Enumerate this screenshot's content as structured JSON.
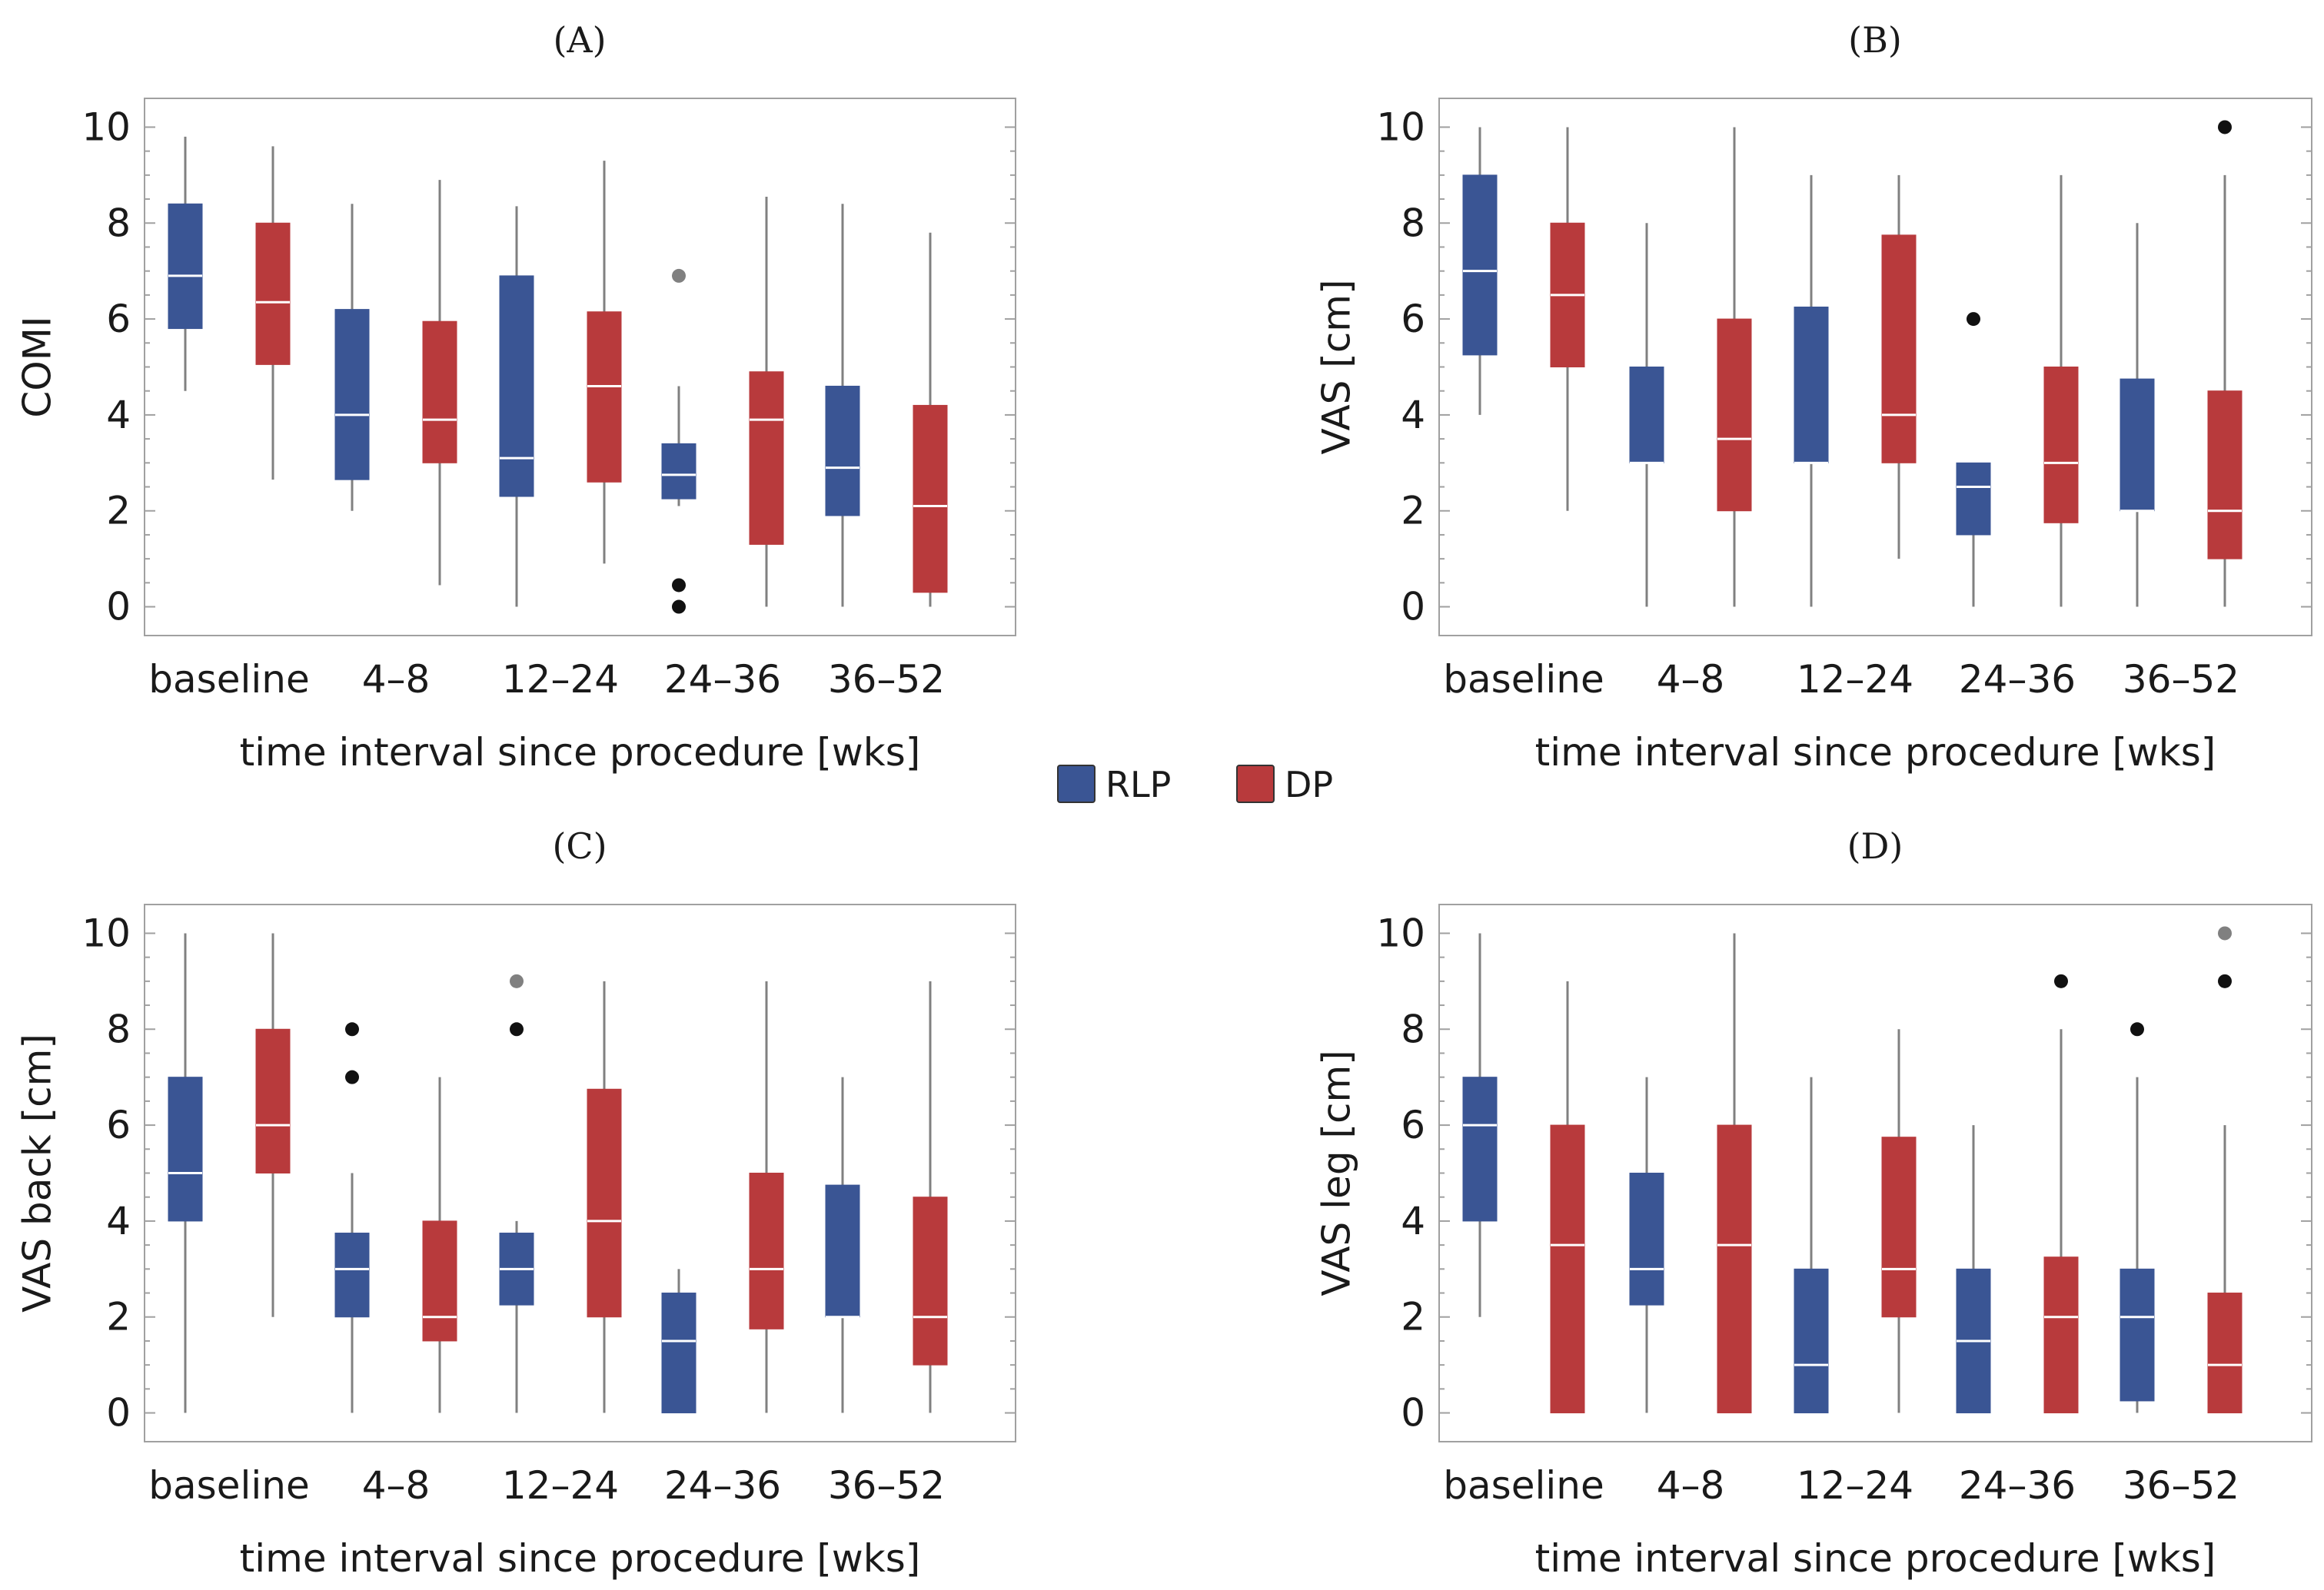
{
  "colors": {
    "RLP": "#3a5594",
    "DP": "#b83a3c",
    "whisker": "#808080",
    "median": "#ffffff",
    "frame": "#a0a0a0",
    "outlier_dark": "#111111",
    "outlier_gray": "#808080"
  },
  "legend": [
    {
      "key": "RLP",
      "label": "RLP"
    },
    {
      "key": "DP",
      "label": "DP"
    }
  ],
  "chart_data": [
    {
      "type": "box",
      "title": "(A)",
      "xlabel": "time interval since procedure [wks]",
      "ylabel": "COMI",
      "ylim": [
        -0.6,
        10.6
      ],
      "yticks": [
        0,
        2,
        4,
        6,
        8,
        10
      ],
      "categories": [
        "baseline",
        "4–8",
        "12–24",
        "24–36",
        "36–52"
      ],
      "series": [
        {
          "name": "RLP",
          "boxes": [
            {
              "min": 4.5,
              "q1": 5.8,
              "median": 6.9,
              "q3": 8.4,
              "max": 9.8,
              "outliers": []
            },
            {
              "min": 2.0,
              "q1": 2.65,
              "median": 4.0,
              "q3": 6.2,
              "max": 8.4,
              "outliers": []
            },
            {
              "min": 0.0,
              "q1": 2.3,
              "median": 3.1,
              "q3": 6.9,
              "max": 8.35,
              "outliers": []
            },
            {
              "min": 2.1,
              "q1": 2.25,
              "median": 2.75,
              "q3": 3.4,
              "max": 4.6,
              "outliers": [
                {
                  "y": 6.9,
                  "style": "gray"
                },
                {
                  "y": 0.45,
                  "style": "dark"
                },
                {
                  "y": 0.0,
                  "style": "dark"
                }
              ]
            },
            {
              "min": 0.0,
              "q1": 1.9,
              "median": 2.9,
              "q3": 4.6,
              "max": 8.4,
              "outliers": []
            }
          ]
        },
        {
          "name": "DP",
          "boxes": [
            {
              "min": 2.65,
              "q1": 5.05,
              "median": 6.35,
              "q3": 8.0,
              "max": 9.6,
              "outliers": []
            },
            {
              "min": 0.45,
              "q1": 3.0,
              "median": 3.9,
              "q3": 5.95,
              "max": 8.9,
              "outliers": []
            },
            {
              "min": 0.9,
              "q1": 2.6,
              "median": 4.6,
              "q3": 6.15,
              "max": 9.3,
              "outliers": []
            },
            {
              "min": 0.0,
              "q1": 1.3,
              "median": 3.9,
              "q3": 4.9,
              "max": 8.55,
              "outliers": []
            },
            {
              "min": 0.0,
              "q1": 0.3,
              "median": 2.1,
              "q3": 4.2,
              "max": 7.8,
              "outliers": []
            }
          ]
        }
      ]
    },
    {
      "type": "box",
      "title": "(B)",
      "xlabel": "time interval since procedure [wks]",
      "ylabel": "VAS [cm]",
      "ylim": [
        -0.6,
        10.6
      ],
      "yticks": [
        0,
        2,
        4,
        6,
        8,
        10
      ],
      "categories": [
        "baseline",
        "4–8",
        "12–24",
        "24–36",
        "36–52"
      ],
      "series": [
        {
          "name": "RLP",
          "boxes": [
            {
              "min": 4.0,
              "q1": 5.25,
              "median": 7.0,
              "q3": 9.0,
              "max": 10.0,
              "outliers": []
            },
            {
              "min": 0.0,
              "q1": 3.0,
              "median": 3.0,
              "q3": 5.0,
              "max": 8.0,
              "outliers": []
            },
            {
              "min": 0.0,
              "q1": 3.0,
              "median": 3.0,
              "q3": 6.25,
              "max": 9.0,
              "outliers": []
            },
            {
              "min": 0.0,
              "q1": 1.5,
              "median": 2.5,
              "q3": 3.0,
              "max": 3.0,
              "outliers": [
                {
                  "y": 6.0,
                  "style": "dark"
                }
              ]
            },
            {
              "min": 0.0,
              "q1": 2.0,
              "median": 2.0,
              "q3": 4.75,
              "max": 8.0,
              "outliers": []
            }
          ]
        },
        {
          "name": "DP",
          "boxes": [
            {
              "min": 2.0,
              "q1": 5.0,
              "median": 6.5,
              "q3": 8.0,
              "max": 10.0,
              "outliers": []
            },
            {
              "min": 0.0,
              "q1": 2.0,
              "median": 3.5,
              "q3": 6.0,
              "max": 10.0,
              "outliers": []
            },
            {
              "min": 1.0,
              "q1": 3.0,
              "median": 4.0,
              "q3": 7.75,
              "max": 9.0,
              "outliers": []
            },
            {
              "min": 0.0,
              "q1": 1.75,
              "median": 3.0,
              "q3": 5.0,
              "max": 9.0,
              "outliers": []
            },
            {
              "min": 0.0,
              "q1": 1.0,
              "median": 2.0,
              "q3": 4.5,
              "max": 9.0,
              "outliers": [
                {
                  "y": 10.0,
                  "style": "dark"
                }
              ]
            }
          ]
        }
      ]
    },
    {
      "type": "box",
      "title": "(C)",
      "xlabel": "time interval since procedure [wks]",
      "ylabel": "VAS back [cm]",
      "ylim": [
        -0.6,
        10.6
      ],
      "yticks": [
        0,
        2,
        4,
        6,
        8,
        10
      ],
      "categories": [
        "baseline",
        "4–8",
        "12–24",
        "24–36",
        "36–52"
      ],
      "series": [
        {
          "name": "RLP",
          "boxes": [
            {
              "min": 0.0,
              "q1": 4.0,
              "median": 5.0,
              "q3": 7.0,
              "max": 10.0,
              "outliers": []
            },
            {
              "min": 0.0,
              "q1": 2.0,
              "median": 3.0,
              "q3": 3.75,
              "max": 5.0,
              "outliers": [
                {
                  "y": 8.0,
                  "style": "dark"
                },
                {
                  "y": 7.0,
                  "style": "dark"
                }
              ]
            },
            {
              "min": 0.0,
              "q1": 2.25,
              "median": 3.0,
              "q3": 3.75,
              "max": 4.0,
              "outliers": [
                {
                  "y": 9.0,
                  "style": "gray"
                },
                {
                  "y": 8.0,
                  "style": "dark"
                }
              ]
            },
            {
              "min": 0.0,
              "q1": 0.0,
              "median": 1.5,
              "q3": 2.5,
              "max": 3.0,
              "outliers": []
            },
            {
              "min": 0.0,
              "q1": 2.0,
              "median": 2.0,
              "q3": 4.75,
              "max": 7.0,
              "outliers": []
            }
          ]
        },
        {
          "name": "DP",
          "boxes": [
            {
              "min": 2.0,
              "q1": 5.0,
              "median": 6.0,
              "q3": 8.0,
              "max": 10.0,
              "outliers": []
            },
            {
              "min": 0.0,
              "q1": 1.5,
              "median": 2.0,
              "q3": 4.0,
              "max": 7.0,
              "outliers": []
            },
            {
              "min": 0.0,
              "q1": 2.0,
              "median": 4.0,
              "q3": 6.75,
              "max": 9.0,
              "outliers": []
            },
            {
              "min": 0.0,
              "q1": 1.75,
              "median": 3.0,
              "q3": 5.0,
              "max": 9.0,
              "outliers": []
            },
            {
              "min": 0.0,
              "q1": 1.0,
              "median": 2.0,
              "q3": 4.5,
              "max": 9.0,
              "outliers": []
            }
          ]
        }
      ]
    },
    {
      "type": "box",
      "title": "(D)",
      "xlabel": "time interval since procedure [wks]",
      "ylabel": "VAS leg [cm]",
      "ylim": [
        -0.6,
        10.6
      ],
      "yticks": [
        0,
        2,
        4,
        6,
        8,
        10
      ],
      "categories": [
        "baseline",
        "4–8",
        "12–24",
        "24–36",
        "36–52"
      ],
      "series": [
        {
          "name": "RLP",
          "boxes": [
            {
              "min": 2.0,
              "q1": 4.0,
              "median": 6.0,
              "q3": 7.0,
              "max": 10.0,
              "outliers": []
            },
            {
              "min": 0.0,
              "q1": 2.25,
              "median": 3.0,
              "q3": 5.0,
              "max": 7.0,
              "outliers": []
            },
            {
              "min": 0.0,
              "q1": 0.0,
              "median": 1.0,
              "q3": 3.0,
              "max": 7.0,
              "outliers": []
            },
            {
              "min": 0.0,
              "q1": 0.0,
              "median": 1.5,
              "q3": 3.0,
              "max": 6.0,
              "outliers": []
            },
            {
              "min": 0.0,
              "q1": 0.25,
              "median": 2.0,
              "q3": 3.0,
              "max": 7.0,
              "outliers": [
                {
                  "y": 8.0,
                  "style": "dark"
                }
              ]
            }
          ]
        },
        {
          "name": "DP",
          "boxes": [
            {
              "min": 0.0,
              "q1": 0.0,
              "median": 3.5,
              "q3": 6.0,
              "max": 9.0,
              "outliers": []
            },
            {
              "min": 0.0,
              "q1": 0.0,
              "median": 3.5,
              "q3": 6.0,
              "max": 10.0,
              "outliers": []
            },
            {
              "min": 0.0,
              "q1": 2.0,
              "median": 3.0,
              "q3": 5.75,
              "max": 8.0,
              "outliers": []
            },
            {
              "min": 0.0,
              "q1": 0.0,
              "median": 2.0,
              "q3": 3.25,
              "max": 8.0,
              "outliers": [
                {
                  "y": 9.0,
                  "style": "dark"
                }
              ]
            },
            {
              "min": 0.0,
              "q1": 0.0,
              "median": 1.0,
              "q3": 2.5,
              "max": 6.0,
              "outliers": [
                {
                  "y": 10.0,
                  "style": "gray"
                },
                {
                  "y": 9.0,
                  "style": "dark"
                }
              ]
            }
          ]
        }
      ]
    }
  ]
}
